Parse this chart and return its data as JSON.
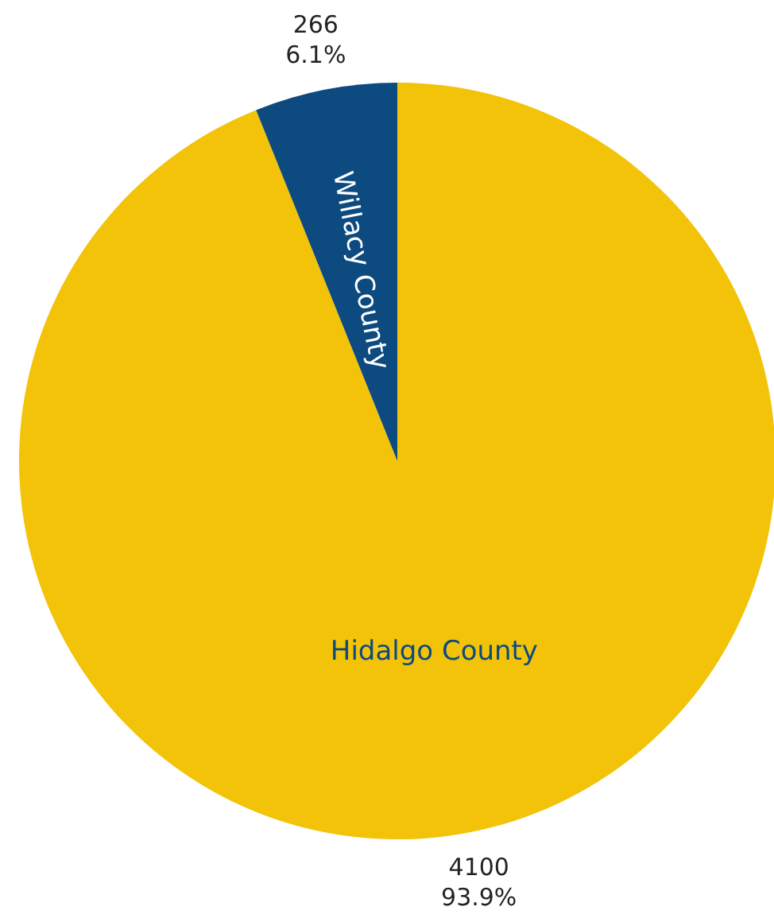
{
  "chart_data": {
    "type": "pie",
    "categories": [
      "Hidalgo County",
      "Willacy County"
    ],
    "values": [
      4100,
      266
    ],
    "colors": [
      "#f2c308",
      "#0d4a80"
    ],
    "value_labels": [
      "4100\n93.9%",
      "266\n6.1%"
    ],
    "legend": false
  }
}
